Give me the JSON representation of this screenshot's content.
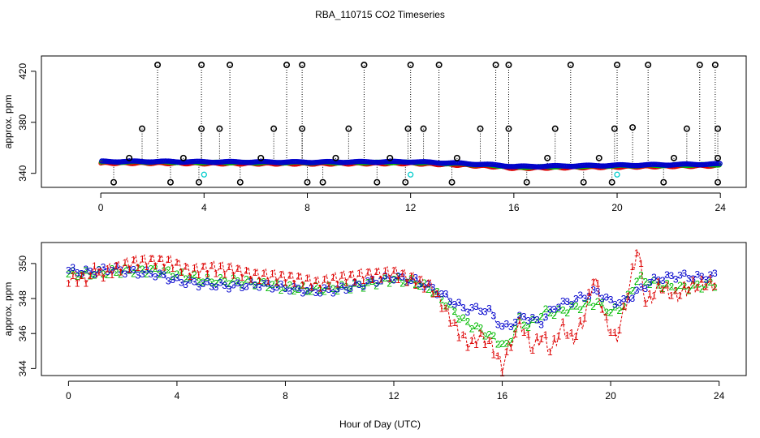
{
  "chart_data": {
    "title": "RBA_110715  CO2 Timeseries",
    "xlabel": "Hour of Day (UTC)",
    "series_colors": {
      "1": "#dd0000",
      "2": "#00bb00",
      "3": "#0000cc",
      "outlier": "#000000",
      "cyan": "#00cccc"
    },
    "panels": [
      {
        "type": "scatter",
        "ylabel": "approx. ppm",
        "xlim": [
          -2.3,
          25.0
        ],
        "ylim": [
          329.0,
          432.0
        ],
        "xticks": [
          0,
          4,
          8,
          12,
          16,
          20,
          24
        ],
        "yticks": [
          340,
          380,
          420
        ],
        "xtick_labels": [
          "0",
          "4",
          "8",
          "12",
          "16",
          "20",
          "24"
        ],
        "ytick_labels": [
          "340",
          "380",
          "420"
        ],
        "baseline_low": [
          [
            0,
            348.5
          ],
          [
            2,
            348.5
          ],
          [
            4,
            348.2
          ],
          [
            8,
            348.0
          ],
          [
            12,
            348.3
          ],
          [
            14,
            347.0
          ],
          [
            15.5,
            345.5
          ],
          [
            16,
            344.5
          ],
          [
            18,
            345.0
          ],
          [
            20,
            345.5
          ],
          [
            22,
            346.0
          ],
          [
            24,
            346.5
          ]
        ],
        "outliers": [
          {
            "x": 2.2,
            "y": 425
          },
          {
            "x": 3.9,
            "y": 425
          },
          {
            "x": 5.0,
            "y": 425
          },
          {
            "x": 7.2,
            "y": 425
          },
          {
            "x": 7.8,
            "y": 425
          },
          {
            "x": 10.2,
            "y": 425
          },
          {
            "x": 12.0,
            "y": 425
          },
          {
            "x": 13.1,
            "y": 425
          },
          {
            "x": 15.3,
            "y": 425
          },
          {
            "x": 15.8,
            "y": 425
          },
          {
            "x": 18.2,
            "y": 425
          },
          {
            "x": 20.0,
            "y": 425
          },
          {
            "x": 21.2,
            "y": 425
          },
          {
            "x": 23.2,
            "y": 425
          },
          {
            "x": 23.8,
            "y": 425
          },
          {
            "x": 1.6,
            "y": 375
          },
          {
            "x": 3.9,
            "y": 375
          },
          {
            "x": 4.6,
            "y": 375
          },
          {
            "x": 6.7,
            "y": 375
          },
          {
            "x": 7.8,
            "y": 375
          },
          {
            "x": 9.6,
            "y": 375
          },
          {
            "x": 11.9,
            "y": 375
          },
          {
            "x": 12.5,
            "y": 375
          },
          {
            "x": 14.7,
            "y": 375
          },
          {
            "x": 15.8,
            "y": 375
          },
          {
            "x": 17.6,
            "y": 375
          },
          {
            "x": 19.9,
            "y": 375
          },
          {
            "x": 20.6,
            "y": 376
          },
          {
            "x": 22.7,
            "y": 375
          },
          {
            "x": 23.9,
            "y": 375
          },
          {
            "x": 1.1,
            "y": 352
          },
          {
            "x": 3.2,
            "y": 352
          },
          {
            "x": 6.2,
            "y": 352
          },
          {
            "x": 9.1,
            "y": 352
          },
          {
            "x": 11.2,
            "y": 352
          },
          {
            "x": 13.8,
            "y": 352
          },
          {
            "x": 17.3,
            "y": 352
          },
          {
            "x": 19.3,
            "y": 352
          },
          {
            "x": 22.2,
            "y": 352
          },
          {
            "x": 23.9,
            "y": 352
          },
          {
            "x": 0.5,
            "y": 333
          },
          {
            "x": 2.7,
            "y": 333
          },
          {
            "x": 3.8,
            "y": 333
          },
          {
            "x": 5.4,
            "y": 333
          },
          {
            "x": 8.0,
            "y": 333
          },
          {
            "x": 8.6,
            "y": 333
          },
          {
            "x": 10.7,
            "y": 333
          },
          {
            "x": 11.8,
            "y": 333
          },
          {
            "x": 13.6,
            "y": 333
          },
          {
            "x": 16.5,
            "y": 333
          },
          {
            "x": 18.7,
            "y": 333
          },
          {
            "x": 19.8,
            "y": 333
          },
          {
            "x": 21.8,
            "y": 333
          },
          {
            "x": 23.9,
            "y": 333
          }
        ],
        "cyan_points": [
          {
            "x": 4.0,
            "y": 339
          },
          {
            "x": 12.0,
            "y": 339
          },
          {
            "x": 20.0,
            "y": 339
          }
        ]
      },
      {
        "type": "line",
        "ylabel": "approx. ppm",
        "xlim": [
          -1.0,
          25.0
        ],
        "ylim": [
          343.6,
          351.2
        ],
        "xticks": [
          0,
          4,
          8,
          12,
          16,
          20,
          24
        ],
        "yticks": [
          344,
          346,
          348,
          350
        ],
        "xtick_labels": [
          "0",
          "4",
          "8",
          "12",
          "16",
          "20",
          "24"
        ],
        "ytick_labels": [
          "344",
          "346",
          "348",
          "350"
        ],
        "series": [
          {
            "name": "1",
            "color": "#dd0000",
            "anchors": [
              [
                0,
                349.3
              ],
              [
                0.8,
                349.3
              ],
              [
                1.6,
                349.8
              ],
              [
                2.4,
                350.2
              ],
              [
                3.2,
                350.3
              ],
              [
                3.8,
                350.2
              ],
              [
                4.5,
                349.7
              ],
              [
                5.2,
                349.9
              ],
              [
                6.0,
                349.8
              ],
              [
                6.8,
                349.5
              ],
              [
                7.6,
                349.4
              ],
              [
                8.4,
                349.3
              ],
              [
                9.2,
                349.0
              ],
              [
                10.0,
                349.3
              ],
              [
                11.0,
                349.5
              ],
              [
                12.0,
                349.6
              ],
              [
                12.8,
                349.2
              ],
              [
                13.4,
                348.8
              ],
              [
                13.9,
                347.5
              ],
              [
                14.4,
                346.2
              ],
              [
                14.8,
                345.5
              ],
              [
                15.2,
                346.0
              ],
              [
                15.6,
                345.5
              ],
              [
                16.0,
                344.2
              ],
              [
                16.3,
                345.6
              ],
              [
                16.7,
                346.4
              ],
              [
                17.1,
                345.0
              ],
              [
                17.5,
                345.8
              ],
              [
                17.8,
                344.8
              ],
              [
                18.2,
                346.3
              ],
              [
                18.6,
                345.5
              ],
              [
                19.0,
                346.6
              ],
              [
                19.4,
                349.2
              ],
              [
                19.8,
                346.6
              ],
              [
                20.2,
                345.5
              ],
              [
                20.6,
                347.8
              ],
              [
                21.0,
                350.9
              ],
              [
                21.3,
                347.5
              ],
              [
                21.8,
                348.6
              ],
              [
                22.4,
                348.0
              ],
              [
                23.0,
                348.6
              ],
              [
                23.8,
                348.7
              ]
            ],
            "ripple": 0.45,
            "ripple_period": 0.32
          },
          {
            "name": "2",
            "color": "#00bb00",
            "anchors": [
              [
                0,
                349.4
              ],
              [
                0.8,
                349.4
              ],
              [
                1.6,
                349.5
              ],
              [
                2.4,
                349.6
              ],
              [
                3.2,
                349.6
              ],
              [
                4.0,
                349.4
              ],
              [
                5.0,
                349.0
              ],
              [
                6.0,
                349.0
              ],
              [
                7.0,
                348.9
              ],
              [
                8.0,
                348.6
              ],
              [
                9.0,
                348.5
              ],
              [
                10.0,
                348.6
              ],
              [
                11.0,
                348.8
              ],
              [
                12.0,
                349.1
              ],
              [
                12.8,
                348.9
              ],
              [
                13.4,
                348.5
              ],
              [
                14.0,
                347.6
              ],
              [
                14.6,
                346.7
              ],
              [
                15.2,
                346.2
              ],
              [
                15.8,
                345.6
              ],
              [
                16.2,
                345.2
              ],
              [
                16.6,
                346.8
              ],
              [
                17.0,
                346.4
              ],
              [
                17.5,
                347.2
              ],
              [
                18.0,
                347.2
              ],
              [
                18.5,
                347.4
              ],
              [
                19.0,
                347.6
              ],
              [
                19.5,
                347.8
              ],
              [
                20.0,
                347.2
              ],
              [
                20.5,
                347.6
              ],
              [
                21.0,
                349.2
              ],
              [
                21.5,
                348.9
              ],
              [
                22.0,
                348.7
              ],
              [
                22.6,
                348.6
              ],
              [
                23.2,
                348.7
              ],
              [
                23.8,
                348.8
              ]
            ],
            "ripple": 0.2,
            "ripple_period": 0.5
          },
          {
            "name": "3",
            "color": "#0000cc",
            "anchors": [
              [
                0,
                349.6
              ],
              [
                0.8,
                349.5
              ],
              [
                1.6,
                349.7
              ],
              [
                2.4,
                349.5
              ],
              [
                3.2,
                349.4
              ],
              [
                4.0,
                349.0
              ],
              [
                5.0,
                348.8
              ],
              [
                6.0,
                348.7
              ],
              [
                7.0,
                348.8
              ],
              [
                8.0,
                348.6
              ],
              [
                9.0,
                348.4
              ],
              [
                10.0,
                348.5
              ],
              [
                11.0,
                348.9
              ],
              [
                12.0,
                349.2
              ],
              [
                12.8,
                349.0
              ],
              [
                13.4,
                348.6
              ],
              [
                14.0,
                348.0
              ],
              [
                14.6,
                347.4
              ],
              [
                15.2,
                347.4
              ],
              [
                15.6,
                347.2
              ],
              [
                16.0,
                346.3
              ],
              [
                16.4,
                346.6
              ],
              [
                16.8,
                347.0
              ],
              [
                17.4,
                346.6
              ],
              [
                18.0,
                347.6
              ],
              [
                18.5,
                347.8
              ],
              [
                19.0,
                348.1
              ],
              [
                19.5,
                348.4
              ],
              [
                20.0,
                347.8
              ],
              [
                20.5,
                347.8
              ],
              [
                21.0,
                348.4
              ],
              [
                21.5,
                349.0
              ],
              [
                22.0,
                349.2
              ],
              [
                22.6,
                349.3
              ],
              [
                23.2,
                349.2
              ],
              [
                23.8,
                349.3
              ]
            ],
            "ripple": 0.18,
            "ripple_period": 0.55
          }
        ]
      }
    ]
  }
}
